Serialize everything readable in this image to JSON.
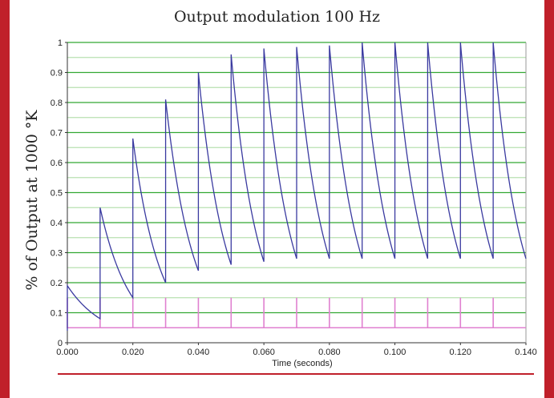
{
  "chart_data": {
    "type": "line",
    "title": "Output modulation 100 Hz",
    "xlabel": "Time (seconds)",
    "ylabel": "% of Output at 1000 °K",
    "xlim": [
      0,
      0.14
    ],
    "ylim": [
      0,
      1
    ],
    "x_ticks": [
      "0.000",
      "0.020",
      "0.040",
      "0.060",
      "0.080",
      "0.100",
      "0.120",
      "0.140"
    ],
    "y_ticks": [
      "0",
      "0.1",
      "0.2",
      "0.3",
      "0.4",
      "0.5",
      "0.6",
      "0.7",
      "0.8",
      "0.9",
      "1"
    ],
    "grid": true,
    "series": [
      {
        "role": "output",
        "color": "#3a3aa0",
        "pulse_times": [
          0.0,
          0.01,
          0.02,
          0.03,
          0.04,
          0.05,
          0.06,
          0.07,
          0.08,
          0.09,
          0.1,
          0.11,
          0.12,
          0.13
        ],
        "peaks": [
          0.19,
          0.45,
          0.68,
          0.81,
          0.9,
          0.96,
          0.98,
          0.985,
          0.99,
          1.0,
          1.0,
          1.0,
          1.0,
          1.0
        ],
        "troughs": [
          0.08,
          0.15,
          0.2,
          0.24,
          0.26,
          0.27,
          0.28,
          0.28,
          0.28,
          0.28,
          0.28,
          0.28,
          0.28,
          0.28
        ]
      },
      {
        "role": "drive pulses",
        "color": "#e080d0",
        "baseline": 0.05,
        "pulse_height": 0.15,
        "pulse_times": [
          0.0,
          0.01,
          0.02,
          0.03,
          0.04,
          0.05,
          0.06,
          0.07,
          0.08,
          0.09,
          0.1,
          0.11,
          0.12,
          0.13
        ]
      }
    ],
    "colors": {
      "grid_major": "#33a833",
      "grid_minor": "#b8e0b0",
      "frame": "#c0202a"
    }
  }
}
